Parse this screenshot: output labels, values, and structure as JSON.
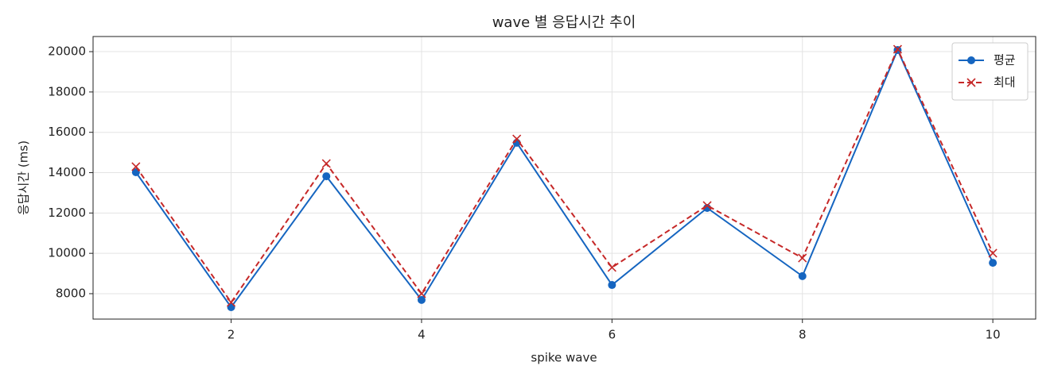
{
  "chart_data": {
    "type": "line",
    "title": "wave 별 응답시간 추이",
    "xlabel": "spike wave",
    "ylabel": "응답시간 (ms)",
    "x": [
      1,
      2,
      3,
      4,
      5,
      6,
      7,
      8,
      9,
      10
    ],
    "series": [
      {
        "name": "평균",
        "color": "#1565c0",
        "marker": "o",
        "linestyle": "solid",
        "values": [
          14020,
          7330,
          13820,
          7690,
          15480,
          8430,
          12250,
          8870,
          20080,
          9530
        ]
      },
      {
        "name": "최대",
        "color": "#c62828",
        "marker": "x",
        "linestyle": "dashed",
        "values": [
          14300,
          7570,
          14450,
          8000,
          15670,
          9300,
          12370,
          9770,
          20120,
          10010
        ]
      }
    ],
    "xlim": [
      0.55,
      10.45
    ],
    "ylim": [
      6740,
      20750
    ],
    "xticks": [
      2,
      4,
      6,
      8,
      10
    ],
    "yticks": [
      8000,
      10000,
      12000,
      14000,
      16000,
      18000,
      20000
    ],
    "grid": true,
    "legend": "upper right"
  }
}
